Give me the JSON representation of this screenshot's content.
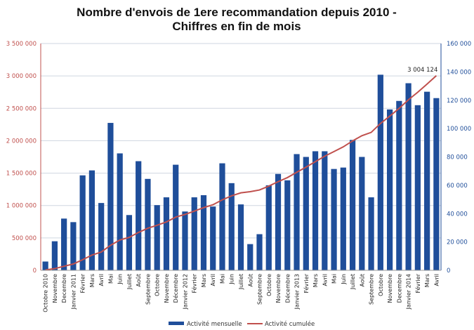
{
  "chart_data": {
    "type": "bar",
    "title": [
      "Nombre d'envois de 1ere recommandation depuis 2010 -",
      "Chiffres en fin de mois"
    ],
    "xlabel": "",
    "ylabel": "",
    "categories": [
      "Octobre 2010",
      "Novembre",
      "Decembre",
      "Janvier 2011",
      "Février",
      "Mars",
      "Avril",
      "Mai",
      "Juin",
      "Juillet",
      "Août",
      "Septembre",
      "Octobre",
      "Novembre",
      "Décembre",
      "Janvier 2012",
      "Février",
      "Mars",
      "Avril",
      "Mai",
      "Juin",
      "Juillet",
      "Août",
      "Septembre",
      "Octobre",
      "Novembre",
      "Décembre",
      "Janvier 2013",
      "Février",
      "Mars",
      "Avril",
      "Mai",
      "Juin",
      "Juillet",
      "Août",
      "Septembre",
      "Octobre",
      "Novembre",
      "Decembre",
      "Janvier 2014",
      "Février",
      "Mars",
      "Avril"
    ],
    "ylim": [
      0,
      3500000
    ],
    "y2lim": [
      0,
      160000
    ],
    "yticks": [
      "0",
      "500 000",
      "1 000 000",
      "1 500 000",
      "2 000 000",
      "2 500 000",
      "3 000 000",
      "3 500 000"
    ],
    "y2ticks": [
      "0",
      "20 000",
      "40 000",
      "60 000",
      "80 000",
      "100 000",
      "120 000",
      "140 000",
      "160 000"
    ],
    "grid": true,
    "legend_position": "bottom",
    "colors": {
      "bars": "#1f4e9a",
      "line": "#c0504d",
      "left_axis": "#c0504d",
      "right_axis": "#1f4e9a",
      "grid": "#cfd6e0"
    },
    "series": [
      {
        "name": "Activité mensuelle",
        "axis": "right",
        "type": "bar",
        "values": [
          6200,
          20500,
          36500,
          34000,
          67000,
          70500,
          47500,
          104000,
          82500,
          39000,
          77000,
          64500,
          46000,
          51500,
          74500,
          41500,
          51500,
          53000,
          45000,
          75500,
          61500,
          46500,
          18500,
          25500,
          60000,
          68000,
          63500,
          82000,
          80000,
          84000,
          84000,
          71500,
          72500,
          92000,
          80000,
          51500,
          138000,
          113500,
          119500,
          132000,
          116500,
          126000,
          121500
        ]
      },
      {
        "name": "Activité cumulée",
        "axis": "left",
        "type": "line",
        "values": [
          6200,
          26700,
          63200,
          97200,
          164200,
          234700,
          282200,
          386200,
          468700,
          507700,
          584700,
          649200,
          695200,
          746700,
          821200,
          862700,
          914200,
          967200,
          1012200,
          1087700,
          1149200,
          1195700,
          1214200,
          1239700,
          1299700,
          1367700,
          1431200,
          1513200,
          1593200,
          1677200,
          1761200,
          1832700,
          1905200,
          1997200,
          2077200,
          2128700,
          2266700,
          2380200,
          2499700,
          2631700,
          2748200,
          2874200,
          3004124
        ]
      }
    ],
    "annotations": [
      {
        "text": "3 004 124",
        "series": "Activité cumulée",
        "category": "Avril"
      }
    ]
  }
}
